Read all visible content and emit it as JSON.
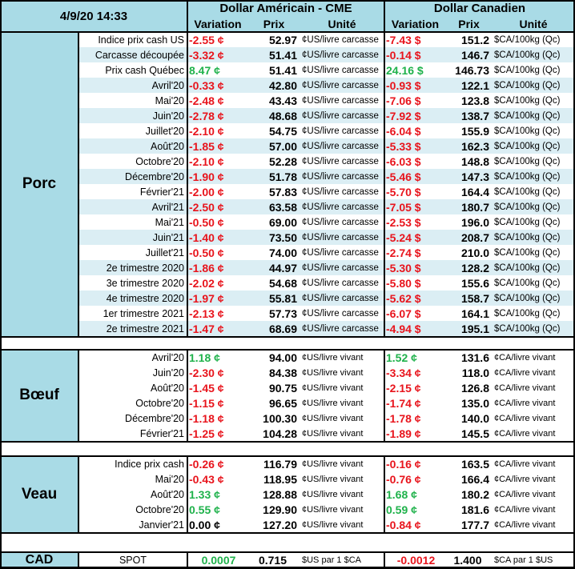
{
  "header": {
    "timestamp": "4/9/20 14:33",
    "usd_title": "Dollar Américain - CME",
    "cad_title": "Dollar Canadien",
    "col_variation": "Variation",
    "col_prix": "Prix",
    "col_unite": "Unité"
  },
  "colors": {
    "section_blue": "#a9dbe6",
    "stripe_blue": "#dbeef4",
    "negative": "#e8141c",
    "positive": "#1fb24b"
  },
  "sections": [
    {
      "name": "Porc",
      "rows": [
        {
          "label": "Indice prix cash US",
          "usd_var": "-2.55 ¢",
          "usd_prix": "52.97",
          "usd_unit": "¢US/livre carcasse",
          "cad_var": "-7.43 $",
          "cad_prix": "151.2",
          "cad_unit": "$CA/100kg (Qc)"
        },
        {
          "label": "Carcasse découpée",
          "usd_var": "-3.32 ¢",
          "usd_prix": "51.41",
          "usd_unit": "¢US/livre carcasse",
          "cad_var": "-0.14 $",
          "cad_prix": "146.7",
          "cad_unit": "$CA/100kg (Qc)"
        },
        {
          "label": "Prix cash Québec",
          "usd_var": "8.47 ¢",
          "usd_prix": "51.41",
          "usd_unit": "¢US/livre carcasse",
          "cad_var": "24.16 $",
          "cad_prix": "146.73",
          "cad_unit": "$CA/100kg (Qc)"
        },
        {
          "label": "Avril'20",
          "usd_var": "-0.33 ¢",
          "usd_prix": "42.80",
          "usd_unit": "¢US/livre carcasse",
          "cad_var": "-0.93 $",
          "cad_prix": "122.1",
          "cad_unit": "$CA/100kg (Qc)"
        },
        {
          "label": "Mai'20",
          "usd_var": "-2.48 ¢",
          "usd_prix": "43.43",
          "usd_unit": "¢US/livre carcasse",
          "cad_var": "-7.06 $",
          "cad_prix": "123.8",
          "cad_unit": "$CA/100kg (Qc)"
        },
        {
          "label": "Juin'20",
          "usd_var": "-2.78 ¢",
          "usd_prix": "48.68",
          "usd_unit": "¢US/livre carcasse",
          "cad_var": "-7.92 $",
          "cad_prix": "138.7",
          "cad_unit": "$CA/100kg (Qc)"
        },
        {
          "label": "Juillet'20",
          "usd_var": "-2.10 ¢",
          "usd_prix": "54.75",
          "usd_unit": "¢US/livre carcasse",
          "cad_var": "-6.04 $",
          "cad_prix": "155.9",
          "cad_unit": "$CA/100kg (Qc)"
        },
        {
          "label": "Août'20",
          "usd_var": "-1.85 ¢",
          "usd_prix": "57.00",
          "usd_unit": "¢US/livre carcasse",
          "cad_var": "-5.33 $",
          "cad_prix": "162.3",
          "cad_unit": "$CA/100kg (Qc)"
        },
        {
          "label": "Octobre'20",
          "usd_var": "-2.10 ¢",
          "usd_prix": "52.28",
          "usd_unit": "¢US/livre carcasse",
          "cad_var": "-6.03 $",
          "cad_prix": "148.8",
          "cad_unit": "$CA/100kg (Qc)"
        },
        {
          "label": "Décembre'20",
          "usd_var": "-1.90 ¢",
          "usd_prix": "51.78",
          "usd_unit": "¢US/livre carcasse",
          "cad_var": "-5.46 $",
          "cad_prix": "147.3",
          "cad_unit": "$CA/100kg (Qc)"
        },
        {
          "label": "Février'21",
          "usd_var": "-2.00 ¢",
          "usd_prix": "57.83",
          "usd_unit": "¢US/livre carcasse",
          "cad_var": "-5.70 $",
          "cad_prix": "164.4",
          "cad_unit": "$CA/100kg (Qc)"
        },
        {
          "label": "Avril'21",
          "usd_var": "-2.50 ¢",
          "usd_prix": "63.58",
          "usd_unit": "¢US/livre carcasse",
          "cad_var": "-7.05 $",
          "cad_prix": "180.7",
          "cad_unit": "$CA/100kg (Qc)"
        },
        {
          "label": "Mai'21",
          "usd_var": "-0.50 ¢",
          "usd_prix": "69.00",
          "usd_unit": "¢US/livre carcasse",
          "cad_var": "-2.53 $",
          "cad_prix": "196.0",
          "cad_unit": "$CA/100kg (Qc)"
        },
        {
          "label": "Juin'21",
          "usd_var": "-1.40 ¢",
          "usd_prix": "73.50",
          "usd_unit": "¢US/livre carcasse",
          "cad_var": "-5.24 $",
          "cad_prix": "208.7",
          "cad_unit": "$CA/100kg (Qc)"
        },
        {
          "label": "Juillet'21",
          "usd_var": "-0.50 ¢",
          "usd_prix": "74.00",
          "usd_unit": "¢US/livre carcasse",
          "cad_var": "-2.74 $",
          "cad_prix": "210.0",
          "cad_unit": "$CA/100kg (Qc)"
        },
        {
          "label": "2e trimestre 2020",
          "usd_var": "-1.86 ¢",
          "usd_prix": "44.97",
          "usd_unit": "¢US/livre carcasse",
          "cad_var": "-5.30 $",
          "cad_prix": "128.2",
          "cad_unit": "$CA/100kg (Qc)"
        },
        {
          "label": "3e trimestre 2020",
          "usd_var": "-2.02 ¢",
          "usd_prix": "54.68",
          "usd_unit": "¢US/livre carcasse",
          "cad_var": "-5.80 $",
          "cad_prix": "155.6",
          "cad_unit": "$CA/100kg (Qc)"
        },
        {
          "label": "4e trimestre 2020",
          "usd_var": "-1.97 ¢",
          "usd_prix": "55.81",
          "usd_unit": "¢US/livre carcasse",
          "cad_var": "-5.62 $",
          "cad_prix": "158.7",
          "cad_unit": "$CA/100kg (Qc)"
        },
        {
          "label": "1er trimestre 2021",
          "usd_var": "-2.13 ¢",
          "usd_prix": "57.73",
          "usd_unit": "¢US/livre carcasse",
          "cad_var": "-6.07 $",
          "cad_prix": "164.1",
          "cad_unit": "$CA/100kg (Qc)"
        },
        {
          "label": "2e trimestre 2021",
          "usd_var": "-1.47 ¢",
          "usd_prix": "68.69",
          "usd_unit": "¢US/livre carcasse",
          "cad_var": "-4.94 $",
          "cad_prix": "195.1",
          "cad_unit": "$CA/100kg (Qc)"
        }
      ]
    },
    {
      "name": "Bœuf",
      "rows": [
        {
          "label": "Avril'20",
          "usd_var": "1.18 ¢",
          "usd_prix": "94.00",
          "usd_unit": "¢US/livre vivant",
          "cad_var": "1.52 ¢",
          "cad_prix": "131.6",
          "cad_unit": "¢CA/livre vivant"
        },
        {
          "label": "Juin'20",
          "usd_var": "-2.30 ¢",
          "usd_prix": "84.38",
          "usd_unit": "¢US/livre vivant",
          "cad_var": "-3.34 ¢",
          "cad_prix": "118.0",
          "cad_unit": "¢CA/livre vivant"
        },
        {
          "label": "Août'20",
          "usd_var": "-1.45 ¢",
          "usd_prix": "90.75",
          "usd_unit": "¢US/livre vivant",
          "cad_var": "-2.15 ¢",
          "cad_prix": "126.8",
          "cad_unit": "¢CA/livre vivant"
        },
        {
          "label": "Octobre'20",
          "usd_var": "-1.15 ¢",
          "usd_prix": "96.65",
          "usd_unit": "¢US/livre vivant",
          "cad_var": "-1.74 ¢",
          "cad_prix": "135.0",
          "cad_unit": "¢CA/livre vivant"
        },
        {
          "label": "Décembre'20",
          "usd_var": "-1.18 ¢",
          "usd_prix": "100.30",
          "usd_unit": "¢US/livre vivant",
          "cad_var": "-1.78 ¢",
          "cad_prix": "140.0",
          "cad_unit": "¢CA/livre vivant"
        },
        {
          "label": "Février'21",
          "usd_var": "-1.25 ¢",
          "usd_prix": "104.28",
          "usd_unit": "¢US/livre vivant",
          "cad_var": "-1.89 ¢",
          "cad_prix": "145.5",
          "cad_unit": "¢CA/livre vivant"
        }
      ]
    },
    {
      "name": "Veau",
      "rows": [
        {
          "label": "Indice prix cash",
          "usd_var": "-0.26 ¢",
          "usd_prix": "116.79",
          "usd_unit": "¢US/livre vivant",
          "cad_var": "-0.16 ¢",
          "cad_prix": "163.5",
          "cad_unit": "¢CA/livre vivant"
        },
        {
          "label": "Mai'20",
          "usd_var": "-0.43 ¢",
          "usd_prix": "118.95",
          "usd_unit": "¢US/livre vivant",
          "cad_var": "-0.76 ¢",
          "cad_prix": "166.4",
          "cad_unit": "¢CA/livre vivant"
        },
        {
          "label": "Août'20",
          "usd_var": "1.33 ¢",
          "usd_prix": "128.88",
          "usd_unit": "¢US/livre vivant",
          "cad_var": "1.68 ¢",
          "cad_prix": "180.2",
          "cad_unit": "¢CA/livre vivant"
        },
        {
          "label": "Octobre'20",
          "usd_var": "0.55 ¢",
          "usd_prix": "129.90",
          "usd_unit": "¢US/livre vivant",
          "cad_var": "0.59 ¢",
          "cad_prix": "181.6",
          "cad_unit": "¢CA/livre vivant"
        },
        {
          "label": "Janvier'21",
          "usd_var": "0.00 ¢",
          "usd_prix": "127.20",
          "usd_unit": "¢US/livre vivant",
          "cad_var": "-0.84 ¢",
          "cad_prix": "177.7",
          "cad_unit": "¢CA/livre vivant"
        }
      ]
    },
    {
      "name": "CAD",
      "rows": [
        {
          "label": "SPOT",
          "usd_var": "0.0007",
          "usd_prix": "0.715",
          "usd_unit": "$US par 1 $CA",
          "cad_var": "-0.0012",
          "cad_prix": "1.400",
          "cad_unit": "$CA par 1 $US"
        }
      ]
    }
  ]
}
